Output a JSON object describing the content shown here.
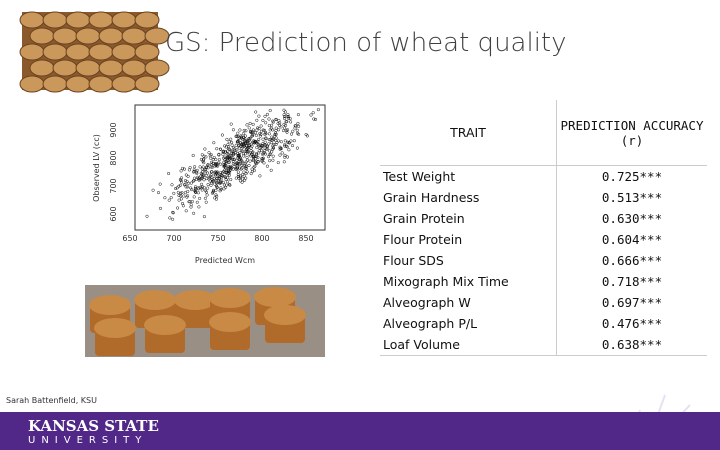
{
  "title": "GS: Prediction of wheat quality",
  "plot": {
    "x_label": "Predicted Wcm",
    "y_label": "Observed LV (cc)",
    "xticks": [
      "650",
      "700",
      "750",
      "800",
      "850"
    ],
    "yticks": [
      "600",
      "700",
      "800",
      "900"
    ]
  },
  "table": {
    "header": [
      "TRAIT",
      "PREDICTION ACCURACY (r)"
    ],
    "rows": [
      [
        "Test Weight",
        "0.725***"
      ],
      [
        "Grain Hardness",
        "0.513***"
      ],
      [
        "Grain Protein",
        "0.630***"
      ],
      [
        "Flour Protein",
        "0.604***"
      ],
      [
        "Flour SDS",
        "0.666***"
      ],
      [
        "Mixograph Mix Time",
        "0.718***"
      ],
      [
        "Alveograph W",
        "0.697***"
      ],
      [
        "Alveograph P/L",
        "0.476***"
      ],
      [
        "Loaf Volume",
        "0.638***"
      ]
    ]
  },
  "credit": "Sarah Battenfield, KSU",
  "footer": {
    "name": "KANSAS STATE",
    "sub": "UNIVERSITY"
  }
}
